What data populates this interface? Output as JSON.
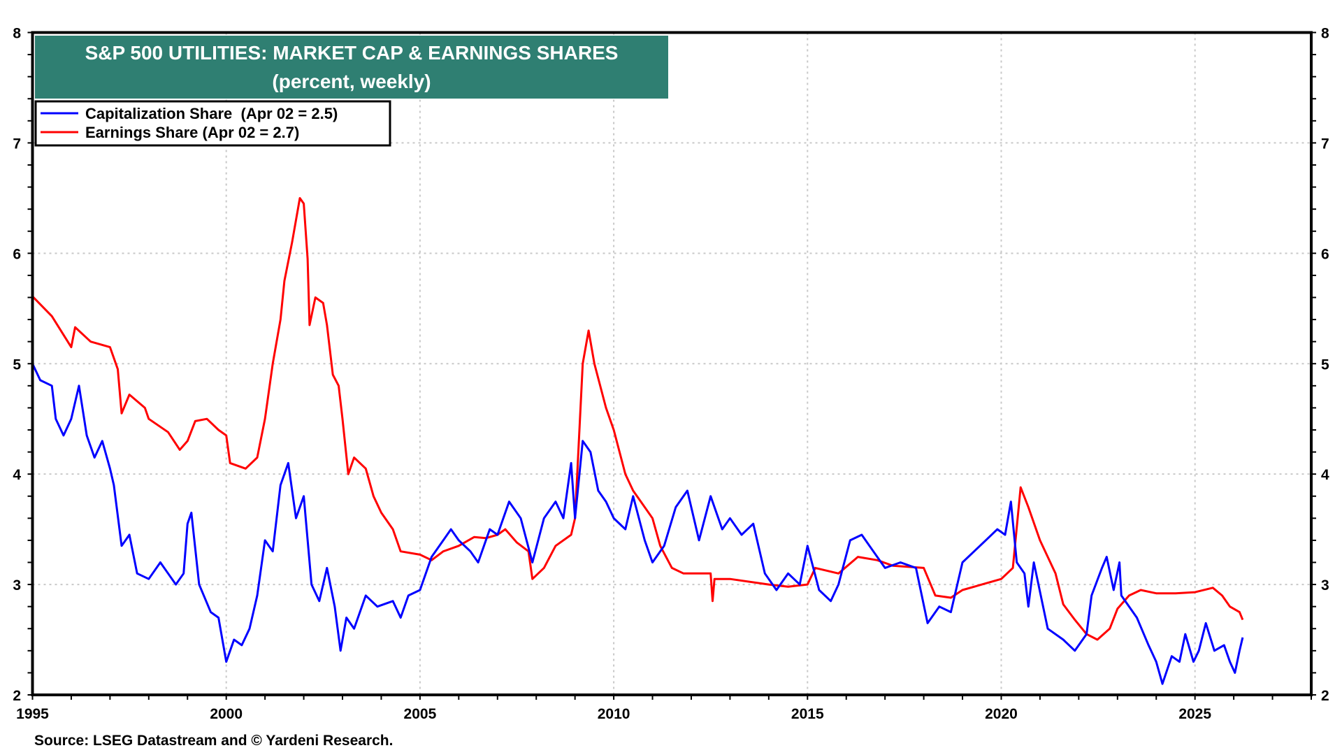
{
  "chart_data": {
    "type": "line",
    "title": "S&P 500 UTILITIES: MARKET CAP & EARNINGS SHARES",
    "subtitle": "(percent, weekly)",
    "source": "Source: LSEG Datastream and © Yardeni Research.",
    "xlim": [
      1995,
      2028
    ],
    "ylim": [
      2,
      8
    ],
    "x_ticks": [
      "1995",
      "2000",
      "2005",
      "2010",
      "2015",
      "2020",
      "2025"
    ],
    "y_ticks": [
      "2",
      "3",
      "4",
      "5",
      "6",
      "7",
      "8"
    ],
    "grid": true,
    "legend_placement": "top-left",
    "series": [
      {
        "name": "Capitalization Share  (Apr 02 = 2.5)",
        "color": "#0000ff",
        "points": [
          [
            1995.0,
            5.0
          ],
          [
            1995.2,
            4.85
          ],
          [
            1995.5,
            4.8
          ],
          [
            1995.6,
            4.5
          ],
          [
            1995.8,
            4.35
          ],
          [
            1996.0,
            4.5
          ],
          [
            1996.2,
            4.8
          ],
          [
            1996.4,
            4.35
          ],
          [
            1996.6,
            4.15
          ],
          [
            1996.8,
            4.3
          ],
          [
            1997.0,
            4.05
          ],
          [
            1997.1,
            3.9
          ],
          [
            1997.3,
            3.35
          ],
          [
            1997.5,
            3.45
          ],
          [
            1997.7,
            3.1
          ],
          [
            1998.0,
            3.05
          ],
          [
            1998.3,
            3.2
          ],
          [
            1998.5,
            3.1
          ],
          [
            1998.7,
            3.0
          ],
          [
            1998.9,
            3.1
          ],
          [
            1999.0,
            3.55
          ],
          [
            1999.1,
            3.65
          ],
          [
            1999.3,
            3.0
          ],
          [
            1999.6,
            2.75
          ],
          [
            1999.8,
            2.7
          ],
          [
            2000.0,
            2.3
          ],
          [
            2000.2,
            2.5
          ],
          [
            2000.4,
            2.45
          ],
          [
            2000.6,
            2.6
          ],
          [
            2000.8,
            2.9
          ],
          [
            2001.0,
            3.4
          ],
          [
            2001.2,
            3.3
          ],
          [
            2001.4,
            3.9
          ],
          [
            2001.6,
            4.1
          ],
          [
            2001.8,
            3.6
          ],
          [
            2002.0,
            3.8
          ],
          [
            2002.2,
            3.0
          ],
          [
            2002.4,
            2.85
          ],
          [
            2002.6,
            3.15
          ],
          [
            2002.8,
            2.8
          ],
          [
            2002.95,
            2.4
          ],
          [
            2003.1,
            2.7
          ],
          [
            2003.3,
            2.6
          ],
          [
            2003.6,
            2.9
          ],
          [
            2003.9,
            2.8
          ],
          [
            2004.3,
            2.85
          ],
          [
            2004.5,
            2.7
          ],
          [
            2004.7,
            2.9
          ],
          [
            2005.0,
            2.95
          ],
          [
            2005.3,
            3.25
          ],
          [
            2005.6,
            3.4
          ],
          [
            2005.8,
            3.5
          ],
          [
            2006.0,
            3.4
          ],
          [
            2006.3,
            3.3
          ],
          [
            2006.5,
            3.2
          ],
          [
            2006.8,
            3.5
          ],
          [
            2007.0,
            3.45
          ],
          [
            2007.3,
            3.75
          ],
          [
            2007.6,
            3.6
          ],
          [
            2007.9,
            3.2
          ],
          [
            2008.2,
            3.6
          ],
          [
            2008.5,
            3.75
          ],
          [
            2008.7,
            3.6
          ],
          [
            2008.9,
            4.1
          ],
          [
            2009.0,
            3.6
          ],
          [
            2009.2,
            4.3
          ],
          [
            2009.4,
            4.2
          ],
          [
            2009.6,
            3.85
          ],
          [
            2009.8,
            3.75
          ],
          [
            2010.0,
            3.6
          ],
          [
            2010.3,
            3.5
          ],
          [
            2010.5,
            3.8
          ],
          [
            2010.8,
            3.4
          ],
          [
            2011.0,
            3.2
          ],
          [
            2011.3,
            3.35
          ],
          [
            2011.6,
            3.7
          ],
          [
            2011.9,
            3.85
          ],
          [
            2012.2,
            3.4
          ],
          [
            2012.5,
            3.8
          ],
          [
            2012.8,
            3.5
          ],
          [
            2013.0,
            3.6
          ],
          [
            2013.3,
            3.45
          ],
          [
            2013.6,
            3.55
          ],
          [
            2013.9,
            3.1
          ],
          [
            2014.2,
            2.95
          ],
          [
            2014.5,
            3.1
          ],
          [
            2014.8,
            3.0
          ],
          [
            2015.0,
            3.35
          ],
          [
            2015.3,
            2.95
          ],
          [
            2015.6,
            2.85
          ],
          [
            2015.8,
            3.0
          ],
          [
            2016.1,
            3.4
          ],
          [
            2016.4,
            3.45
          ],
          [
            2016.7,
            3.3
          ],
          [
            2017.0,
            3.15
          ],
          [
            2017.4,
            3.2
          ],
          [
            2017.8,
            3.15
          ],
          [
            2018.1,
            2.65
          ],
          [
            2018.4,
            2.8
          ],
          [
            2018.7,
            2.75
          ],
          [
            2019.0,
            3.2
          ],
          [
            2019.3,
            3.3
          ],
          [
            2019.6,
            3.4
          ],
          [
            2019.9,
            3.5
          ],
          [
            2020.1,
            3.45
          ],
          [
            2020.25,
            3.75
          ],
          [
            2020.4,
            3.2
          ],
          [
            2020.6,
            3.1
          ],
          [
            2020.7,
            2.8
          ],
          [
            2020.84,
            3.2
          ],
          [
            2021.2,
            2.6
          ],
          [
            2021.6,
            2.5
          ],
          [
            2021.9,
            2.4
          ],
          [
            2022.2,
            2.55
          ],
          [
            2022.33,
            2.9
          ],
          [
            2022.6,
            3.15
          ],
          [
            2022.72,
            3.25
          ],
          [
            2022.9,
            2.95
          ],
          [
            2023.05,
            3.2
          ],
          [
            2023.1,
            2.9
          ],
          [
            2023.5,
            2.7
          ],
          [
            2023.8,
            2.45
          ],
          [
            2024.0,
            2.3
          ],
          [
            2024.16,
            2.1
          ],
          [
            2024.4,
            2.35
          ],
          [
            2024.6,
            2.3
          ],
          [
            2024.75,
            2.55
          ],
          [
            2024.96,
            2.3
          ],
          [
            2025.1,
            2.4
          ],
          [
            2025.28,
            2.65
          ],
          [
            2025.5,
            2.4
          ],
          [
            2025.75,
            2.45
          ],
          [
            2025.9,
            2.3
          ],
          [
            2026.03,
            2.2
          ],
          [
            2026.15,
            2.4
          ],
          [
            2026.23,
            2.52
          ]
        ]
      },
      {
        "name": "Earnings Share (Apr 02 = 2.7)",
        "color": "#ff0000",
        "points": [
          [
            1995.0,
            5.61
          ],
          [
            1995.5,
            5.43
          ],
          [
            1996.0,
            5.15
          ],
          [
            1996.1,
            5.33
          ],
          [
            1996.5,
            5.2
          ],
          [
            1997.0,
            5.15
          ],
          [
            1997.2,
            4.95
          ],
          [
            1997.3,
            4.55
          ],
          [
            1997.5,
            4.72
          ],
          [
            1997.9,
            4.6
          ],
          [
            1998.0,
            4.5
          ],
          [
            1998.5,
            4.38
          ],
          [
            1998.8,
            4.22
          ],
          [
            1999.0,
            4.3
          ],
          [
            1999.2,
            4.48
          ],
          [
            1999.5,
            4.5
          ],
          [
            1999.8,
            4.4
          ],
          [
            2000.0,
            4.35
          ],
          [
            2000.1,
            4.1
          ],
          [
            2000.5,
            4.05
          ],
          [
            2000.8,
            4.15
          ],
          [
            2001.0,
            4.5
          ],
          [
            2001.2,
            5.0
          ],
          [
            2001.4,
            5.4
          ],
          [
            2001.5,
            5.75
          ],
          [
            2001.7,
            6.1
          ],
          [
            2001.9,
            6.5
          ],
          [
            2002.0,
            6.45
          ],
          [
            2002.1,
            5.95
          ],
          [
            2002.15,
            5.35
          ],
          [
            2002.3,
            5.6
          ],
          [
            2002.5,
            5.55
          ],
          [
            2002.6,
            5.35
          ],
          [
            2002.75,
            4.9
          ],
          [
            2002.9,
            4.8
          ],
          [
            2003.0,
            4.5
          ],
          [
            2003.15,
            4.0
          ],
          [
            2003.3,
            4.15
          ],
          [
            2003.6,
            4.05
          ],
          [
            2003.8,
            3.8
          ],
          [
            2004.0,
            3.65
          ],
          [
            2004.3,
            3.5
          ],
          [
            2004.5,
            3.3
          ],
          [
            2005.0,
            3.27
          ],
          [
            2005.3,
            3.22
          ],
          [
            2005.6,
            3.3
          ],
          [
            2006.0,
            3.35
          ],
          [
            2006.4,
            3.43
          ],
          [
            2006.7,
            3.42
          ],
          [
            2007.0,
            3.45
          ],
          [
            2007.2,
            3.5
          ],
          [
            2007.5,
            3.38
          ],
          [
            2007.8,
            3.3
          ],
          [
            2007.9,
            3.05
          ],
          [
            2008.2,
            3.15
          ],
          [
            2008.5,
            3.35
          ],
          [
            2008.9,
            3.45
          ],
          [
            2009.0,
            3.6
          ],
          [
            2009.1,
            4.3
          ],
          [
            2009.2,
            5.0
          ],
          [
            2009.35,
            5.3
          ],
          [
            2009.5,
            5.0
          ],
          [
            2009.8,
            4.6
          ],
          [
            2010.0,
            4.4
          ],
          [
            2010.3,
            4.0
          ],
          [
            2010.5,
            3.85
          ],
          [
            2010.7,
            3.75
          ],
          [
            2011.0,
            3.6
          ],
          [
            2011.2,
            3.35
          ],
          [
            2011.5,
            3.15
          ],
          [
            2011.8,
            3.1
          ],
          [
            2012.5,
            3.1
          ],
          [
            2012.55,
            2.85
          ],
          [
            2012.6,
            3.05
          ],
          [
            2013.0,
            3.05
          ],
          [
            2014.0,
            3.0
          ],
          [
            2014.5,
            2.98
          ],
          [
            2015.0,
            3.0
          ],
          [
            2015.2,
            3.15
          ],
          [
            2015.8,
            3.1
          ],
          [
            2016.3,
            3.25
          ],
          [
            2016.8,
            3.22
          ],
          [
            2017.2,
            3.17
          ],
          [
            2018.0,
            3.15
          ],
          [
            2018.3,
            2.9
          ],
          [
            2018.7,
            2.88
          ],
          [
            2019.0,
            2.95
          ],
          [
            2019.5,
            3.0
          ],
          [
            2020.0,
            3.05
          ],
          [
            2020.3,
            3.15
          ],
          [
            2020.5,
            3.88
          ],
          [
            2020.7,
            3.7
          ],
          [
            2021.0,
            3.4
          ],
          [
            2021.4,
            3.1
          ],
          [
            2021.6,
            2.82
          ],
          [
            2021.9,
            2.68
          ],
          [
            2022.2,
            2.55
          ],
          [
            2022.48,
            2.5
          ],
          [
            2022.8,
            2.6
          ],
          [
            2023.0,
            2.78
          ],
          [
            2023.3,
            2.9
          ],
          [
            2023.6,
            2.95
          ],
          [
            2024.0,
            2.92
          ],
          [
            2024.5,
            2.92
          ],
          [
            2025.0,
            2.93
          ],
          [
            2025.46,
            2.97
          ],
          [
            2025.7,
            2.9
          ],
          [
            2025.9,
            2.8
          ],
          [
            2026.15,
            2.75
          ],
          [
            2026.23,
            2.68
          ]
        ]
      }
    ]
  },
  "colors": {
    "title_bg": "#2f7f72",
    "grid": "#c8c8c8"
  }
}
